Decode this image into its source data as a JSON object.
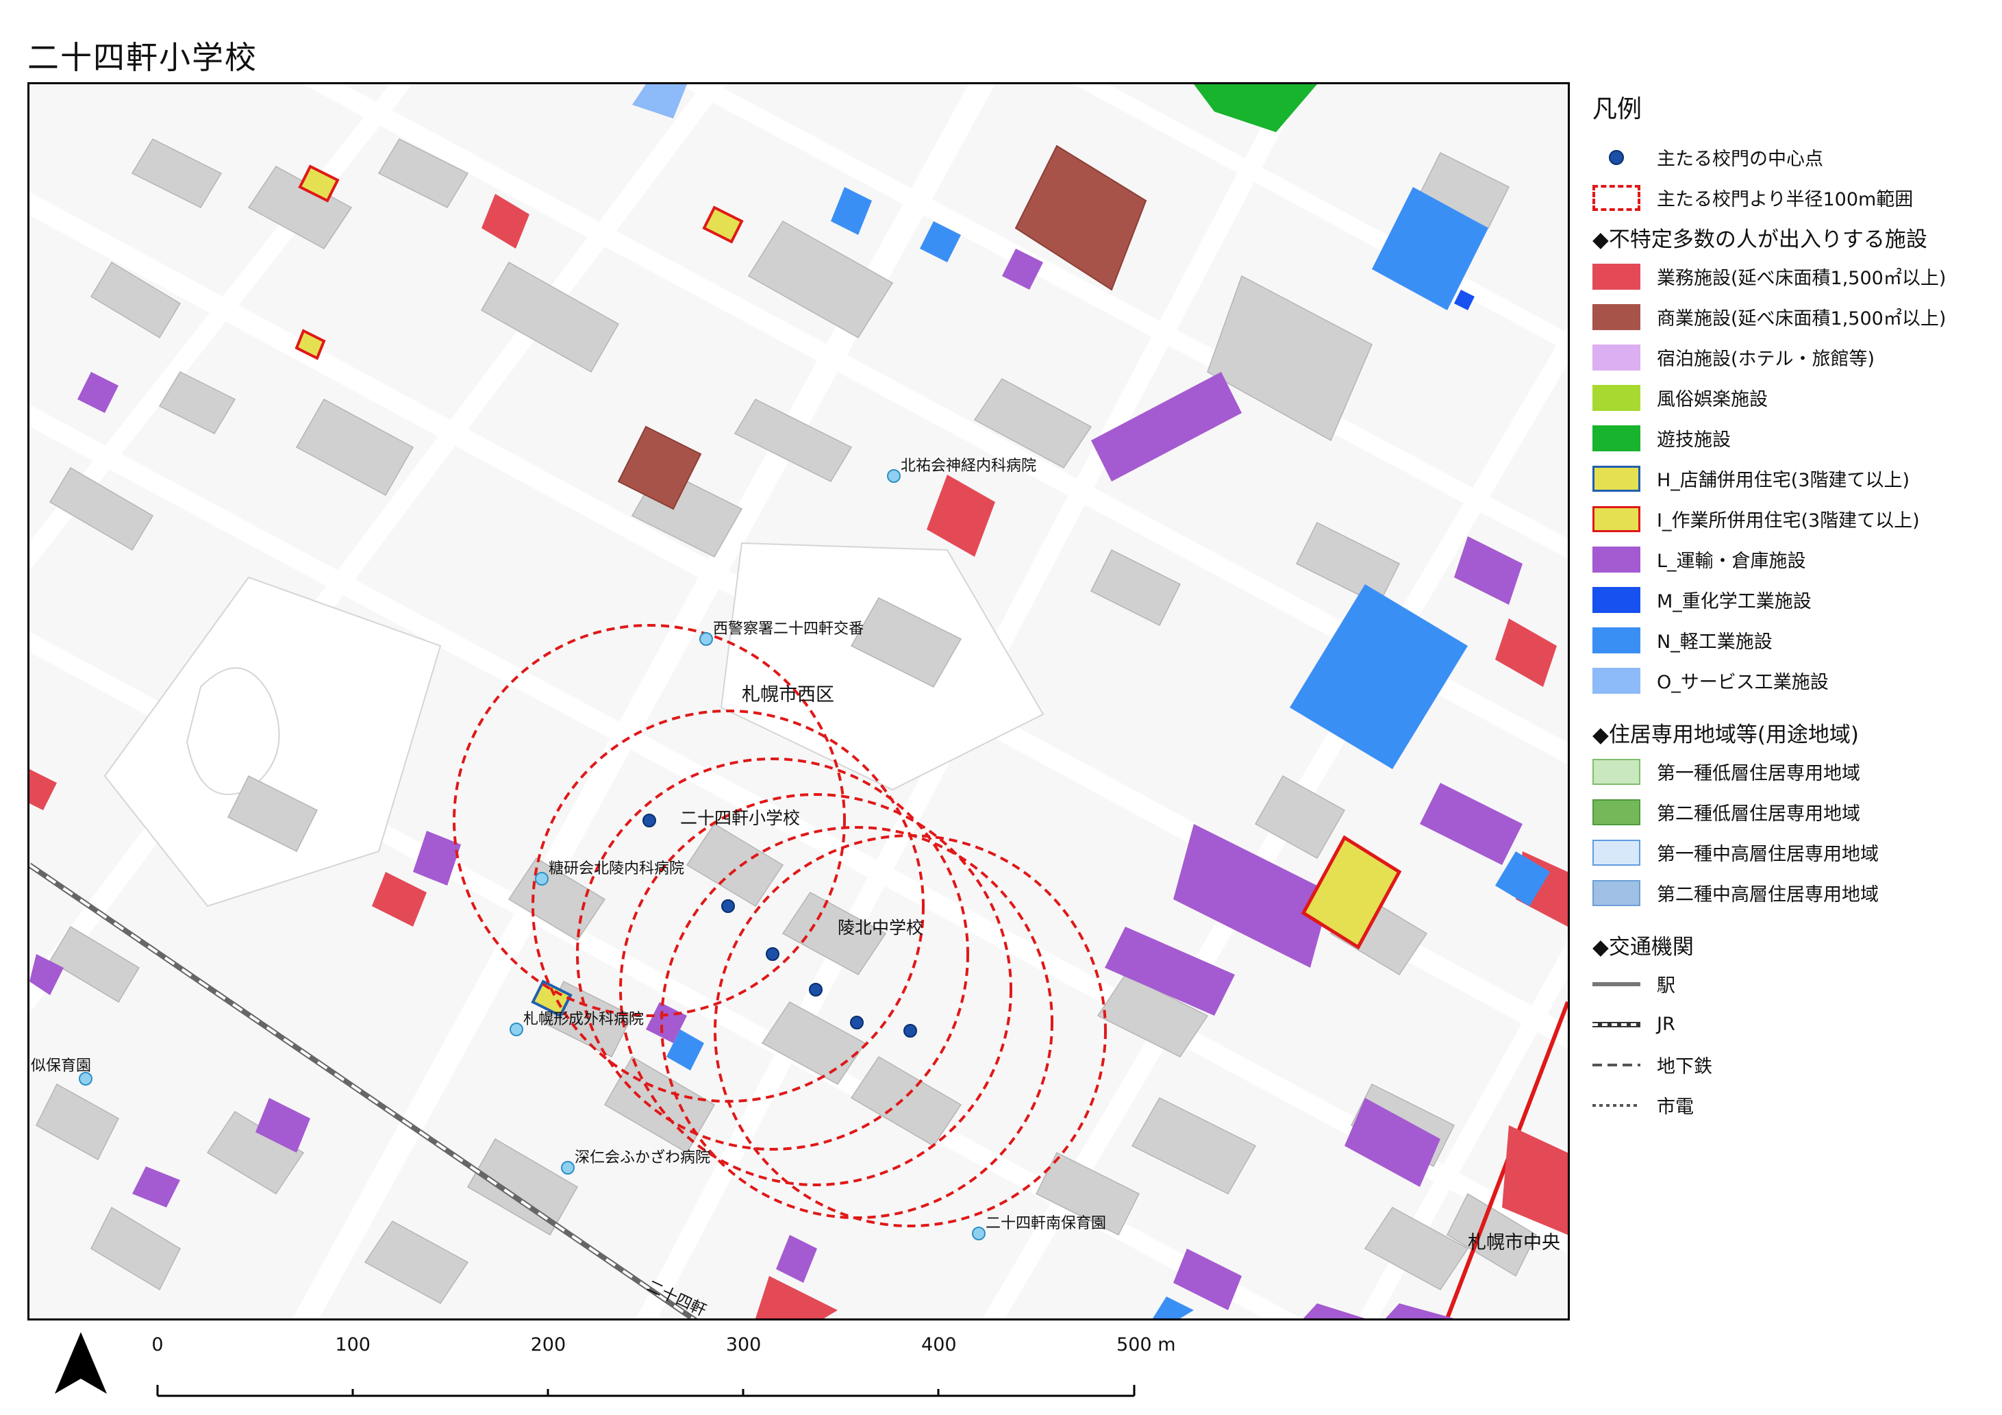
{
  "page": {
    "title": "二十四軒小学校"
  },
  "map": {
    "labels": {
      "ward": "札幌市西区",
      "ward_edge": "札幌市中央",
      "school_primary": "二十四軒小学校",
      "school_junior": "陵北中学校",
      "rail": "二十四軒",
      "nursery_left": "似保育園"
    },
    "facilities": [
      {
        "name": "北祐会神経内科病院"
      },
      {
        "name": "西警察署二十四軒交番"
      },
      {
        "name": "糖研会北陵内科病院"
      },
      {
        "name": "札幌形成外科病院"
      },
      {
        "name": "深仁会ふかざわ病院"
      },
      {
        "name": "二十四軒南保育園"
      }
    ]
  },
  "legend": {
    "title": "凡例",
    "school_gate_center": "主たる校門の中心点",
    "radius_100m": "主たる校門より半径100m範囲",
    "section_facilities": "◆不特定多数の人が出入りする施設",
    "facility_types": [
      {
        "label": "業務施設(延べ床面積1,500㎡以上)",
        "fill": "#e34a56",
        "stroke": "#e34a56"
      },
      {
        "label": "商業施設(延べ床面積1,500㎡以上)",
        "fill": "#a8534a",
        "stroke": "#a8534a"
      },
      {
        "label": "宿泊施設(ホテル・旅館等)",
        "fill": "#dcaef2",
        "stroke": "#dcaef2"
      },
      {
        "label": "風俗娯楽施設",
        "fill": "#a8d930",
        "stroke": "#a8d930"
      },
      {
        "label": "遊技施設",
        "fill": "#18b42e",
        "stroke": "#18b42e"
      },
      {
        "label": "H_店舗併用住宅(3階建て以上)",
        "fill": "#e4e052",
        "stroke": "#1f5fb0"
      },
      {
        "label": "I_作業所併用住宅(3階建て以上)",
        "fill": "#e4e052",
        "stroke": "#e01818"
      },
      {
        "label": "L_運輸・倉庫施設",
        "fill": "#a45ad0",
        "stroke": "#a45ad0"
      },
      {
        "label": "M_重化学工業施設",
        "fill": "#1751ef",
        "stroke": "#1751ef"
      },
      {
        "label": "N_軽工業施設",
        "fill": "#3a8ff5",
        "stroke": "#3a8ff5"
      },
      {
        "label": "O_サービス工業施設",
        "fill": "#8dbaf8",
        "stroke": "#8dbaf8"
      }
    ],
    "section_zoning": "◆住居専用地域等(用途地域)",
    "zoning_types": [
      {
        "label": "第一種低層住居専用地域",
        "fill": "#c9e8bf",
        "stroke": "#7cbf6a"
      },
      {
        "label": "第二種低層住居専用地域",
        "fill": "#74b85a",
        "stroke": "#4f9a3c"
      },
      {
        "label": "第一種中高層住居専用地域",
        "fill": "#d8e8fb",
        "stroke": "#5f9be0"
      },
      {
        "label": "第二種中高層住居専用地域",
        "fill": "#9fc0e4",
        "stroke": "#6a9ed6"
      }
    ],
    "section_transport": "◆交通機関",
    "transport_types": [
      {
        "label": "駅",
        "style": "solid"
      },
      {
        "label": "JR",
        "style": "rail"
      },
      {
        "label": "地下鉄",
        "style": "dashed"
      },
      {
        "label": "市電",
        "style": "dotted"
      }
    ]
  },
  "scale_bar": {
    "ticks": [
      "0",
      "100",
      "200",
      "300",
      "400",
      "500 m"
    ]
  }
}
